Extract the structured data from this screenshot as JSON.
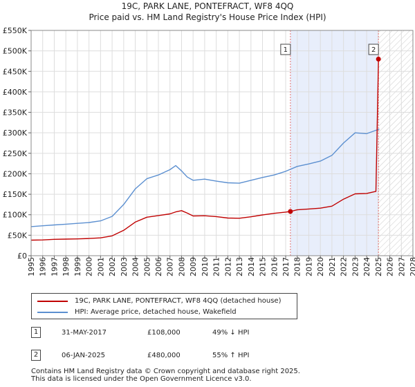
{
  "colors": {
    "red": "#c00000",
    "blue": "#5b8fd0",
    "shade": "#e8eefb",
    "grid": "#dddddd",
    "vline": "#e07070"
  },
  "chart_data": {
    "type": "line",
    "title": "19C, PARK LANE, PONTEFRACT, WF8 4QQ",
    "subtitle": "Price paid vs. HM Land Registry's House Price Index (HPI)",
    "xlim": [
      1995,
      2028
    ],
    "ylim": [
      0,
      550000
    ],
    "yticks": [
      0,
      50000,
      100000,
      150000,
      200000,
      250000,
      300000,
      350000,
      400000,
      450000,
      500000,
      550000
    ],
    "ytick_labels": [
      "£0",
      "£50K",
      "£100K",
      "£150K",
      "£200K",
      "£250K",
      "£300K",
      "£350K",
      "£400K",
      "£450K",
      "£500K",
      "£550K"
    ],
    "xticks": [
      1995,
      1996,
      1997,
      1998,
      1999,
      2000,
      2001,
      2002,
      2003,
      2004,
      2005,
      2006,
      2007,
      2008,
      2009,
      2010,
      2011,
      2012,
      2013,
      2014,
      2015,
      2016,
      2017,
      2018,
      2019,
      2020,
      2021,
      2022,
      2023,
      2024,
      2025,
      2026,
      2027,
      2028
    ],
    "shaded_region": [
      2017.41,
      2025.02
    ],
    "hatched_region": [
      2025.02,
      2028
    ],
    "series": [
      {
        "name": "19C, PARK LANE, PONTEFRACT, WF8 4QQ (detached house)",
        "color": "#c00000",
        "x": [
          1995,
          1996,
          1997,
          1998,
          1999,
          2000,
          2001,
          2002,
          2003,
          2004,
          2005,
          2006,
          2007,
          2007.5,
          2008,
          2008.5,
          2009,
          2010,
          2011,
          2012,
          2013,
          2014,
          2015,
          2016,
          2017,
          2017.41,
          2018,
          2019,
          2020,
          2021,
          2022,
          2023,
          2024,
          2024.8,
          2025.02,
          2025.1
        ],
        "values": [
          38000,
          38500,
          40000,
          40500,
          41000,
          42000,
          43500,
          48500,
          62000,
          82000,
          94000,
          98000,
          102000,
          107000,
          110000,
          104000,
          97000,
          97500,
          95500,
          92000,
          91500,
          95000,
          99500,
          103500,
          106500,
          108000,
          112000,
          114000,
          116000,
          121000,
          138000,
          151000,
          152000,
          157000,
          480000,
          480000
        ]
      },
      {
        "name": "HPI: Average price, detached house, Wakefield",
        "color": "#5b8fd0",
        "x": [
          1995,
          1996,
          1997,
          1998,
          1999,
          2000,
          2001,
          2002,
          2003,
          2004,
          2005,
          2006,
          2007,
          2007.5,
          2008,
          2008.5,
          2009,
          2010,
          2011,
          2012,
          2013,
          2014,
          2015,
          2016,
          2017,
          2018,
          2019,
          2020,
          2021,
          2022,
          2023,
          2024,
          2025,
          2025.1
        ],
        "values": [
          71000,
          73000,
          75000,
          77000,
          79000,
          81000,
          85000,
          96000,
          125000,
          163000,
          188000,
          197000,
          210000,
          220000,
          207000,
          192000,
          184000,
          187000,
          182000,
          178000,
          177000,
          184000,
          191000,
          197000,
          206000,
          218000,
          224000,
          231000,
          245000,
          275000,
          300000,
          298000,
          308000,
          309000
        ]
      }
    ],
    "annotations": [
      {
        "label": "1",
        "x": 2017.41,
        "value": 108000,
        "date": "31-MAY-2017",
        "price": "£108,000",
        "change": "49% ↓ HPI"
      },
      {
        "label": "2",
        "x": 2025.02,
        "value": 480000,
        "date": "06-JAN-2025",
        "price": "£480,000",
        "change": "55% ↑ HPI"
      }
    ]
  },
  "legend": {
    "items": [
      {
        "label": "19C, PARK LANE, PONTEFRACT, WF8 4QQ (detached house)"
      },
      {
        "label": "HPI: Average price, detached house, Wakefield"
      }
    ]
  },
  "transactions": [
    {
      "num": "1",
      "date": "31-MAY-2017",
      "price": "£108,000",
      "change": "49% ↓ HPI"
    },
    {
      "num": "2",
      "date": "06-JAN-2025",
      "price": "£480,000",
      "change": "55% ↑ HPI"
    }
  ],
  "footer": {
    "line1": "Contains HM Land Registry data © Crown copyright and database right 2025.",
    "line2": "This data is licensed under the Open Government Licence v3.0."
  }
}
